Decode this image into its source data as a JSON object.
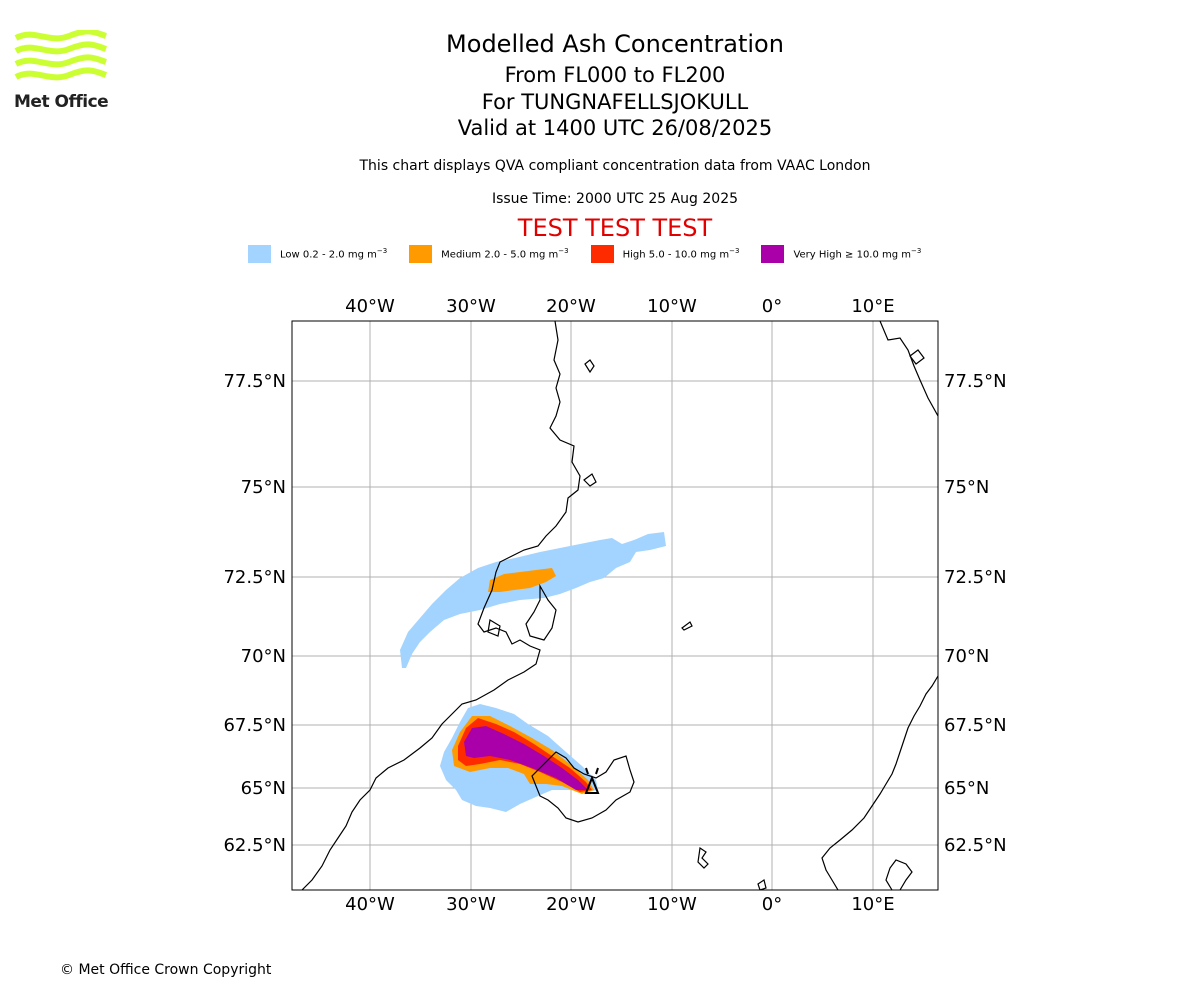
{
  "header": {
    "title": "Modelled Ash Concentration",
    "levels": "From FL000 to FL200",
    "volcano": "For TUNGNAFELLSJOKULL",
    "valid": "Valid at 1400 UTC 26/08/2025",
    "description": "This chart displays QVA compliant concentration data from VAAC London",
    "issue_time": "Issue Time: 2000 UTC 25 Aug 2025",
    "test_banner": "TEST TEST TEST"
  },
  "logo": {
    "text": "Met Office",
    "icon": "met-office-wave-logo",
    "color": "#ccff33"
  },
  "legend": [
    {
      "label": "Low 0.2 - 2.0 mg m",
      "unit_exp": "−3",
      "color": "#a3d4ff"
    },
    {
      "label": "Medium 2.0 - 5.0 mg m",
      "unit_exp": "−3",
      "color": "#ff9a00"
    },
    {
      "label": "High 5.0 - 10.0 mg m",
      "unit_exp": "−3",
      "color": "#ff2b00"
    },
    {
      "label": "Very High  ≥  10.0 mg m",
      "unit_exp": "−3",
      "color": "#aa00aa"
    }
  ],
  "map": {
    "lon_labels": [
      "40°W",
      "30°W",
      "20°W",
      "10°W",
      "0°",
      "10°E"
    ],
    "lat_labels": [
      "77.5°N",
      "75°N",
      "72.5°N",
      "70°N",
      "67.5°N",
      "65°N",
      "62.5°N"
    ],
    "gridlines": true,
    "volcano_marker": "volcano-icon"
  },
  "footer": {
    "copyright": "© Met Office Crown Copyright"
  }
}
